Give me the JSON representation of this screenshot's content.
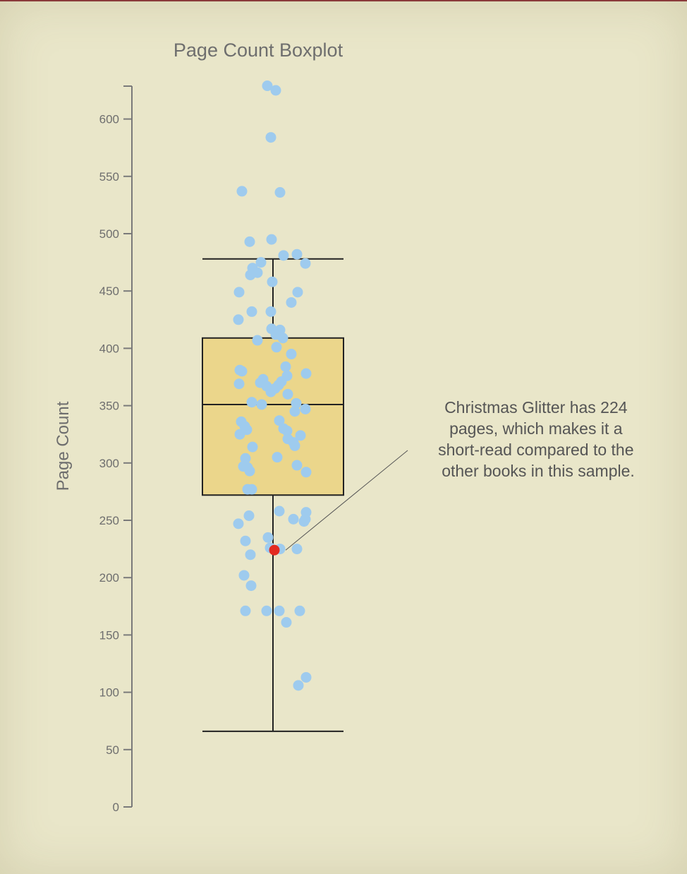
{
  "chart_data": {
    "type": "boxplot",
    "title": "Page Count Boxplot",
    "ylabel": "Page Count",
    "ylim": [
      0,
      630
    ],
    "yticks": [
      0,
      50,
      100,
      150,
      200,
      250,
      300,
      350,
      400,
      450,
      500,
      550,
      600
    ],
    "box": {
      "whisker_low": 66,
      "q1": 272,
      "median": 351,
      "q3": 409,
      "whisker_high": 478
    },
    "box_color": "#ebd68b",
    "point_color": "#9ecbee",
    "highlight_color": "#e32a20",
    "points": [
      629,
      625,
      584,
      537,
      536,
      495,
      493,
      482,
      481,
      475,
      474,
      470,
      466,
      464,
      458,
      449,
      449,
      440,
      432,
      432,
      425,
      417,
      416,
      412,
      409,
      407,
      401,
      395,
      384,
      381,
      380,
      378,
      376,
      373,
      371,
      370,
      369,
      368,
      367,
      365,
      362,
      360,
      353,
      352,
      351,
      347,
      345,
      337,
      336,
      332,
      330,
      329,
      328,
      325,
      324,
      321,
      318,
      315,
      314,
      305,
      304,
      298,
      297,
      296,
      293,
      292,
      277,
      277,
      258,
      257,
      254,
      251,
      251,
      249,
      247,
      235,
      232,
      226,
      225,
      225,
      220,
      202,
      193,
      171,
      171,
      171,
      171,
      161,
      113,
      106
    ],
    "highlight": {
      "value": 224,
      "annotation": "Christmas Glitter has 224 pages, which makes it a short-read compared to the other books in this sample.",
      "annotation_lines": [
        "Christmas Glitter has 224",
        "pages, which makes it a",
        "short-read compared to the",
        "other books in this sample."
      ]
    }
  }
}
